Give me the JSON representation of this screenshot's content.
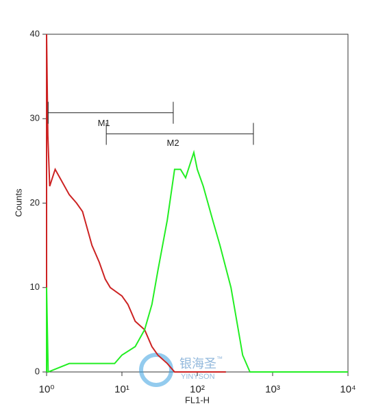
{
  "chart_data": {
    "type": "histogram-overlay",
    "x_label": "FL1-H",
    "y_label": "Counts",
    "xscale": "log",
    "xlim": [
      1,
      10000
    ],
    "xticks": [
      {
        "value": 1,
        "label": "10⁰"
      },
      {
        "value": 10,
        "label": "10¹"
      },
      {
        "value": 100,
        "label": "10²"
      },
      {
        "value": 1000,
        "label": "10³"
      },
      {
        "value": 10000,
        "label": "10⁴"
      }
    ],
    "ylim": [
      0,
      40
    ],
    "yticks": [
      0,
      10,
      20,
      30,
      40
    ],
    "series": [
      {
        "name": null,
        "color": "#cc2222",
        "x": [
          1,
          1,
          1.04,
          1.1,
          1.3,
          1.5,
          2,
          2.5,
          3,
          4,
          5,
          6,
          7,
          10,
          12,
          15,
          20,
          25,
          30,
          40,
          50,
          240
        ],
        "values": [
          0,
          40,
          28,
          22,
          24,
          23,
          21,
          20,
          19,
          15,
          13,
          11,
          10,
          9,
          8,
          6,
          5,
          3,
          2,
          1,
          0,
          0
        ]
      },
      {
        "name": null,
        "color": "#22ee22",
        "x": [
          1,
          1,
          1.05,
          2,
          5,
          8,
          10,
          15,
          20,
          25,
          30,
          40,
          50,
          60,
          70,
          90,
          100,
          120,
          160,
          200,
          280,
          350,
          400,
          500,
          600,
          10000
        ],
        "values": [
          0,
          10,
          0,
          1,
          1,
          1,
          2,
          3,
          5,
          8,
          12,
          18,
          24,
          24,
          23,
          26,
          24,
          22,
          18,
          15,
          10,
          5,
          2,
          0,
          0,
          0
        ]
      }
    ],
    "gates": [
      {
        "label": "M1",
        "range": [
          1.05,
          48
        ],
        "y": 30.7
      },
      {
        "label": "M2",
        "range": [
          6.2,
          556
        ],
        "y": 28.2
      }
    ],
    "watermark": "银海圣",
    "watermark_sub": "YINYSON",
    "watermark_mark": "™"
  }
}
